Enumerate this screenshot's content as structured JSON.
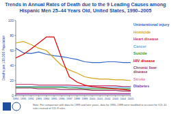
{
  "chart_data": {
    "type": "line",
    "title": "Trends in Annual Rates of Death due to the 9 Leading Causes among Hispanic Men 25–44 Years Old, United States, 1990–2005",
    "y_label": "Deaths per 100,000 Population",
    "note": "Note: For comparison with data for 1999 and later years, data for 1990–1998 were modified to account for ICD-10 rules instead of ICD-9 rules.",
    "x": [
      1990,
      1991,
      1992,
      1993,
      1994,
      1995,
      1996,
      1997,
      1998,
      1999,
      2000,
      2001,
      2002,
      2003,
      2004,
      2005
    ],
    "xlim": [
      1990,
      2005
    ],
    "xticks": [
      1990,
      1991,
      1992,
      1993,
      1994,
      1995,
      1996,
      1997,
      1998,
      1999,
      2000,
      2001,
      2002,
      2003,
      2004,
      2005
    ],
    "ylim": [
      0,
      100
    ],
    "yticks": [
      0,
      20,
      40,
      60,
      80,
      100
    ],
    "grid": false,
    "legend": "right",
    "series": [
      {
        "name": "Unintentional injury",
        "color": "#3366cc",
        "values": [
          63,
          57,
          56,
          58,
          55,
          53,
          52,
          50,
          48,
          45,
          44,
          44,
          45,
          45,
          44,
          44
        ]
      },
      {
        "name": "Homicide",
        "color": "#d4a417",
        "values": [
          70,
          72,
          68,
          63,
          60,
          50,
          40,
          34,
          30,
          25,
          23,
          22,
          22,
          21,
          21,
          20
        ]
      },
      {
        "name": "Heart disease",
        "color": "#cc3366",
        "values": [
          15,
          15,
          15,
          14,
          14,
          14,
          14,
          14,
          13,
          13,
          13,
          13,
          13,
          13,
          12,
          12
        ]
      },
      {
        "name": "Cancer",
        "color": "#66aadd",
        "values": [
          12,
          12,
          12,
          12,
          12,
          12,
          12,
          12,
          11,
          11,
          11,
          11,
          11,
          11,
          11,
          11
        ]
      },
      {
        "name": "Suicide",
        "color": "#339933",
        "values": [
          11,
          11,
          11,
          11,
          11,
          11,
          11,
          10,
          10,
          9,
          9,
          9,
          9,
          9,
          9,
          9
        ]
      },
      {
        "name": "HIV disease",
        "color": "#dd0000",
        "values": [
          50,
          55,
          62,
          70,
          78,
          78,
          50,
          25,
          18,
          14,
          12,
          11,
          10,
          9,
          8,
          7
        ]
      },
      {
        "name": "Chronic liver disease",
        "color": "#993366",
        "values": [
          10,
          10,
          10,
          9,
          9,
          9,
          8,
          8,
          8,
          8,
          7,
          7,
          7,
          7,
          6,
          6
        ]
      },
      {
        "name": "Stroke",
        "color": "#ee77aa",
        "values": [
          3,
          3,
          3,
          3,
          3,
          3,
          3,
          3,
          3,
          3,
          3,
          3,
          3,
          3,
          3,
          3
        ]
      },
      {
        "name": "Diabetes",
        "color": "#7744aa",
        "values": [
          2,
          2,
          2,
          2,
          2,
          2,
          2,
          2,
          2,
          2,
          2,
          2,
          2,
          2,
          2,
          2
        ]
      }
    ]
  }
}
